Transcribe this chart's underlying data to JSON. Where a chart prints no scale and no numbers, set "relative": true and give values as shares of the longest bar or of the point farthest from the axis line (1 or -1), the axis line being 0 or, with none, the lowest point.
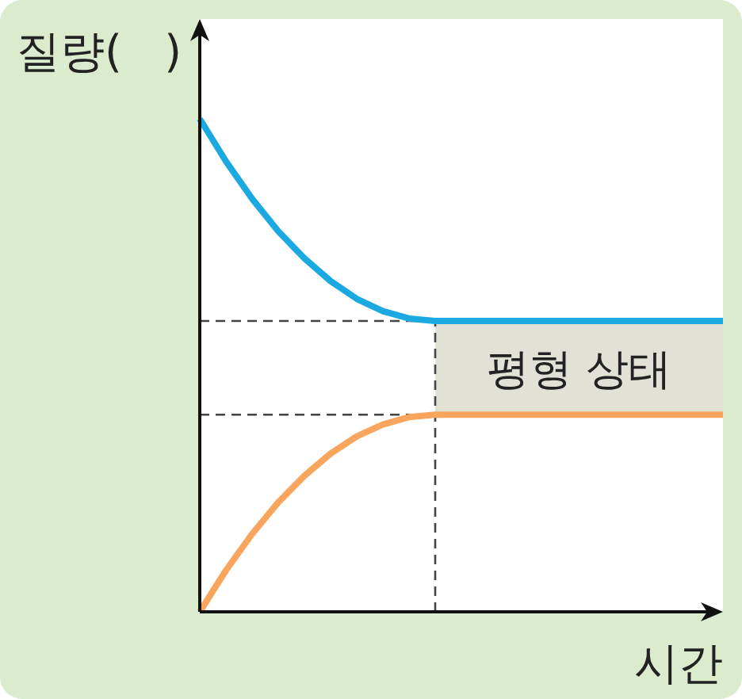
{
  "chart_data": {
    "type": "line",
    "relative": true,
    "xlabel": "시간",
    "ylabel": "질량(   )",
    "categories": [
      null,
      null,
      null,
      null,
      null,
      null,
      null,
      null,
      null,
      null,
      null,
      null,
      null,
      null,
      null,
      null,
      null,
      null,
      null,
      null,
      null
    ],
    "series": [
      {
        "color": "#1aa9e1",
        "values": [
          1,
          0.914,
          0.838,
          0.772,
          0.717,
          0.671,
          0.635,
          0.61,
          0.595,
          0.59,
          0.59,
          0.59,
          0.59,
          0.59,
          0.59,
          0.59,
          0.59,
          0.59,
          0.59,
          0.59,
          0.59
        ]
      },
      {
        "color": "#f9a55e",
        "values": [
          0,
          0.084,
          0.158,
          0.222,
          0.276,
          0.321,
          0.356,
          0.38,
          0.395,
          0.4,
          0.4,
          0.4,
          0.4,
          0.4,
          0.4,
          0.4,
          0.4,
          0.4,
          0.4,
          0.4,
          0.4
        ]
      }
    ],
    "ref_lines": [
      {
        "axis": "y",
        "value": 0.59,
        "line_style": "dashed",
        "color": "#444444"
      },
      {
        "axis": "y",
        "value": 0.4,
        "line_style": "dashed",
        "color": "#444444"
      }
    ],
    "annotations": [
      "평형 상태"
    ],
    "line_style": "solid"
  }
}
